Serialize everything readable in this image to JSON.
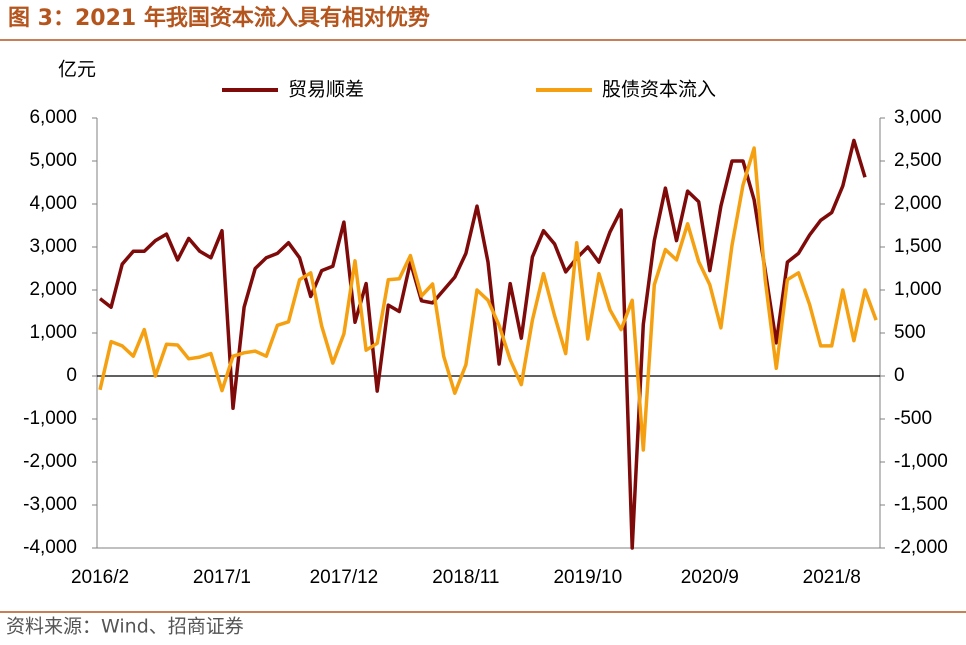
{
  "chart_data": {
    "type": "line",
    "title": "图 3：2021 年我国资本流入具有相对优势",
    "y_unit": "亿元",
    "source": "资料来源：Wind、招商证券",
    "categories": [
      "2016/2",
      null,
      null,
      null,
      null,
      null,
      null,
      null,
      null,
      null,
      null,
      "2017/1",
      null,
      null,
      null,
      null,
      null,
      null,
      null,
      null,
      null,
      null,
      "2017/12",
      null,
      null,
      null,
      null,
      null,
      null,
      null,
      null,
      null,
      null,
      "2018/11",
      null,
      null,
      null,
      null,
      null,
      null,
      null,
      null,
      null,
      null,
      "2019/10",
      null,
      null,
      null,
      null,
      null,
      null,
      null,
      null,
      null,
      null,
      "2020/9",
      null,
      null,
      null,
      null,
      null,
      null,
      null,
      null,
      null,
      null,
      "2021/8",
      null,
      null,
      null,
      null
    ],
    "series": [
      {
        "name": "贸易顺差",
        "color": "#7f0a0a",
        "axis": "y",
        "values": [
          1800,
          1600,
          2600,
          2900,
          2900,
          3150,
          3300,
          2700,
          3200,
          2900,
          2750,
          3380,
          -750,
          1600,
          2500,
          2750,
          2850,
          3100,
          2750,
          1850,
          2450,
          2550,
          3580,
          1250,
          2150,
          -350,
          1650,
          1500,
          2650,
          1750,
          1700,
          2000,
          2300,
          2850,
          3950,
          2650,
          280,
          2150,
          880,
          2770,
          3380,
          3070,
          2420,
          2740,
          3000,
          2650,
          3350,
          3860,
          -4000,
          1200,
          3150,
          4370,
          3150,
          4300,
          4050,
          2450,
          3950,
          5000,
          5000,
          4100,
          2450,
          770,
          2650,
          2850,
          3280,
          3620,
          3800,
          4420,
          5480,
          4620,
          null
        ]
      },
      {
        "name": "股债资本流入",
        "color": "#f5a011",
        "axis": "y2",
        "values": [
          -160,
          400,
          350,
          230,
          540,
          0,
          370,
          360,
          200,
          220,
          260,
          -170,
          230,
          270,
          290,
          230,
          590,
          630,
          1120,
          1200,
          580,
          150,
          490,
          1340,
          300,
          380,
          1120,
          1130,
          1400,
          930,
          1070,
          230,
          -200,
          130,
          1000,
          880,
          590,
          190,
          -100,
          650,
          1190,
          700,
          260,
          1550,
          430,
          1190,
          770,
          540,
          880,
          -860,
          1060,
          1470,
          1350,
          1770,
          1330,
          1060,
          560,
          1520,
          2220,
          2650,
          1120,
          90,
          1120,
          1200,
          830,
          350,
          350,
          1000,
          410,
          1000,
          650
        ]
      }
    ],
    "ylim": [
      -4000,
      6000
    ],
    "yticks": [
      {
        "value": 6000,
        "label": "6,000"
      },
      {
        "value": 5000,
        "label": "5,000"
      },
      {
        "value": 4000,
        "label": "4,000"
      },
      {
        "value": 3000,
        "label": "3,000"
      },
      {
        "value": 2000,
        "label": "2,000"
      },
      {
        "value": 1000,
        "label": "1,000"
      },
      0,
      {
        "value": -1000,
        "label": "-1,000"
      },
      {
        "value": -2000,
        "label": "-2,000"
      },
      {
        "value": -3000,
        "label": "-3,000"
      },
      {
        "value": -4000,
        "label": "-4,000"
      }
    ],
    "y2lim": [
      -2000,
      3000
    ],
    "y2ticks": [
      {
        "value": 3000,
        "label": "3,000"
      },
      {
        "value": 2500,
        "label": "2,500"
      },
      {
        "value": 2000,
        "label": "2,000"
      },
      {
        "value": 1500,
        "label": "1,500"
      },
      {
        "value": 1000,
        "label": "1,000"
      },
      500,
      0,
      -500,
      {
        "value": -1000,
        "label": "-1,000"
      },
      {
        "value": -1500,
        "label": "-1,500"
      },
      {
        "value": -2000,
        "label": "-2,000"
      }
    ],
    "grid": false
  }
}
